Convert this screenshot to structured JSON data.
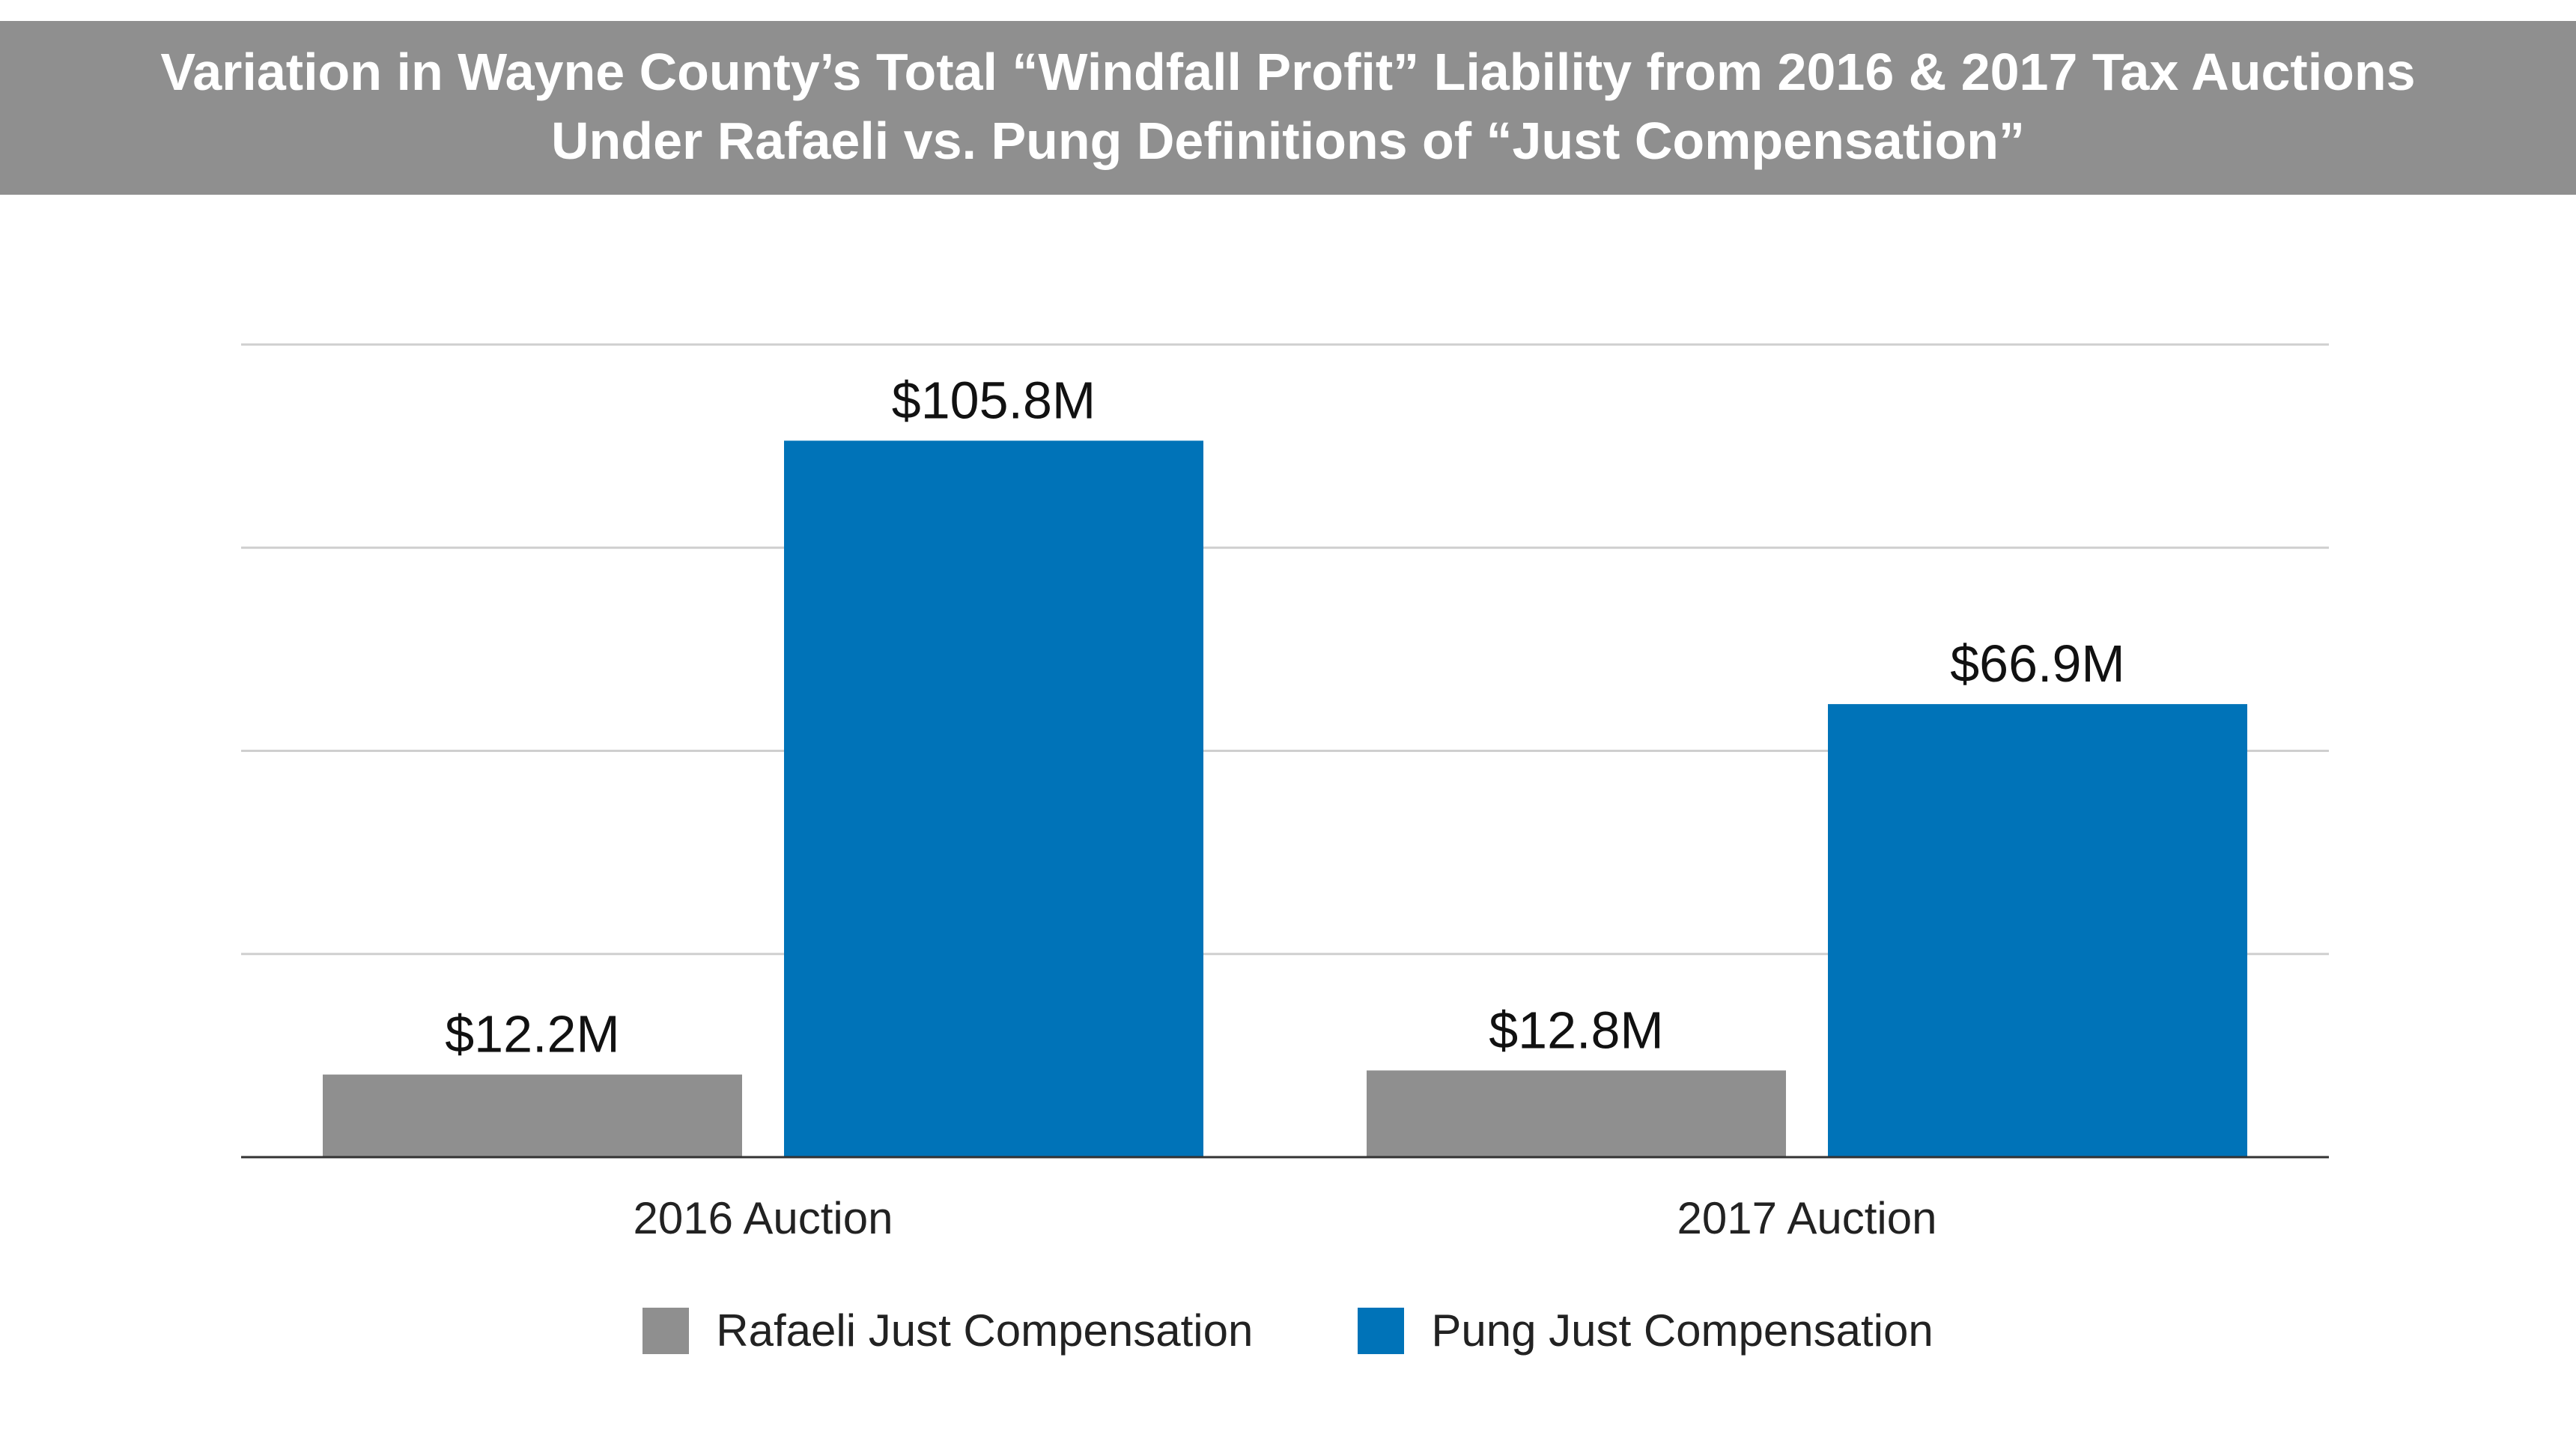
{
  "title": {
    "line1": "Variation in Wayne County’s Total “Windfall Profit” Liability from 2016 & 2017 Tax Auctions",
    "line2": "Under Rafaeli vs. Pung Definitions of “Just Compensation”"
  },
  "colors": {
    "banner": "#8f8f8f",
    "rafaeli": "#8f8f8f",
    "pung": "#0073b8",
    "grid": "#cfcfcf",
    "axis": "#333333"
  },
  "chart_data": {
    "type": "bar",
    "title": "Variation in Wayne County’s Total “Windfall Profit” Liability from 2016 & 2017 Tax Auctions Under Rafaeli vs. Pung Definitions of “Just Compensation”",
    "categories": [
      "2016 Auction",
      "2017 Auction"
    ],
    "series": [
      {
        "name": "Rafaeli Just Compensation",
        "values": [
          12.2,
          12.8
        ],
        "labels": [
          "$12.2M",
          "$12.8M"
        ]
      },
      {
        "name": "Pung Just Compensation",
        "values": [
          105.8,
          66.9
        ],
        "labels": [
          "$105.8M",
          "$66.9M"
        ]
      }
    ],
    "xlabel": "",
    "ylabel": "",
    "ylim": [
      0,
      120
    ],
    "yticks": [
      0,
      30,
      60,
      90,
      120
    ],
    "grid": true,
    "legend": "bottom-center"
  }
}
